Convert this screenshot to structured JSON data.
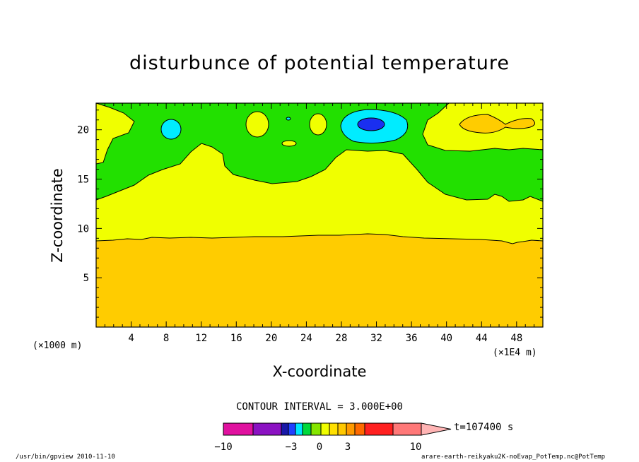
{
  "chart_data": {
    "type": "heatmap",
    "title": "disturbunce of potential temperature",
    "xlabel": "X-coordinate",
    "ylabel": "Z-coordinate",
    "x_unit_left": "(×1000 m)",
    "x_unit_right": "(×1E4 m)",
    "x_ticks": [
      4,
      8,
      12,
      16,
      20,
      24,
      28,
      32,
      36,
      40,
      44,
      48
    ],
    "y_ticks": [
      5,
      10,
      15,
      20
    ],
    "xlim": [
      0,
      51
    ],
    "ylim": [
      0,
      22.7
    ],
    "contour_interval": "CONTOUR INTERVAL = 3.000E+00",
    "time_label": "t=107400 s",
    "colorbar_ticks": [
      "−10",
      "−3",
      "0",
      "3",
      "10"
    ],
    "colorbar_colors": [
      "#e0119f",
      "#8b12c2",
      "#1818a8",
      "#2040ff",
      "#00e5ff",
      "#00d93c",
      "#85e600",
      "#f0ff00",
      "#ffe000",
      "#ffc800",
      "#ff9a00",
      "#ff6a00",
      "#ff2020",
      "#ff7878",
      "#ffb4b4"
    ],
    "regions": [
      {
        "level": "0 to 3",
        "color": "#ffcc00",
        "description_z_range": [
          0,
          9.2
        ]
      },
      {
        "level": "-3 to 0",
        "color": "#f0ff00"
      },
      {
        "level": "-6 to -3",
        "color": "#22e000"
      },
      {
        "level": "-9 to -6",
        "color": "#00ecff"
      },
      {
        "level": "< -9",
        "color": "#1a2ff0"
      }
    ]
  },
  "footer": {
    "left": "/usr/bin/gpview  2010-11-10",
    "right": "arare-earth-reikyaku2K-noEvap_PotTemp.nc@PotTemp"
  }
}
